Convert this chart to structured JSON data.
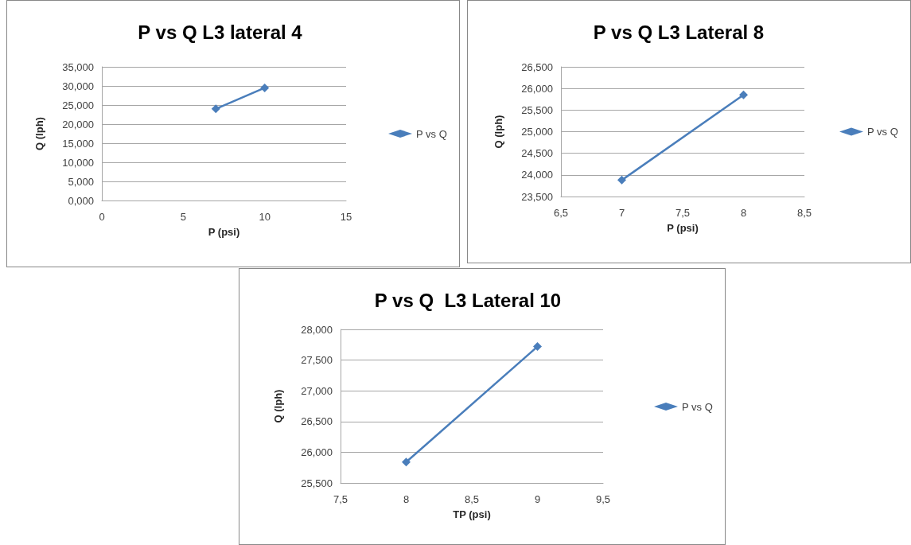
{
  "chart_data": [
    {
      "type": "line",
      "title": "P vs Q L3 lateral 4",
      "xlabel": "P (psi)",
      "ylabel": "Q (lph)",
      "x": [
        7,
        10
      ],
      "series": [
        {
          "name": "P vs Q",
          "color": "#4a7ebb",
          "values": [
            24.0,
            29.5
          ]
        }
      ],
      "xlim": [
        0,
        15
      ],
      "xticks": [
        0,
        5,
        10,
        15
      ],
      "ylim": [
        0,
        35
      ],
      "yticks": [
        {
          "value": 0,
          "label": "0,000"
        },
        {
          "value": 5,
          "label": "5,000"
        },
        {
          "value": 10,
          "label": "10,000"
        },
        {
          "value": 15,
          "label": "15,000"
        },
        {
          "value": 20,
          "label": "20,000"
        },
        {
          "value": 25,
          "label": "25,000"
        },
        {
          "value": 30,
          "label": "30,000"
        },
        {
          "value": 35,
          "label": "35,000"
        }
      ],
      "grid": "y",
      "legend": "right",
      "marker": "diamond",
      "line_style": "solid"
    },
    {
      "type": "line",
      "title": "P vs Q L3 Lateral 8",
      "xlabel": "P (psi)",
      "ylabel": "Q (lph)",
      "x": [
        7,
        8
      ],
      "series": [
        {
          "name": "P vs Q",
          "color": "#4a7ebb",
          "values": [
            23.88,
            25.85
          ]
        }
      ],
      "xlim": [
        6.5,
        8.5
      ],
      "xticks": [
        {
          "value": 6.5,
          "label": "6,5"
        },
        7,
        {
          "value": 7.5,
          "label": "7,5"
        },
        8,
        {
          "value": 8.5,
          "label": "8,5"
        }
      ],
      "ylim": [
        23.5,
        26.5
      ],
      "yticks": [
        {
          "value": 23.5,
          "label": "23,500"
        },
        {
          "value": 24,
          "label": "24,000"
        },
        {
          "value": 24.5,
          "label": "24,500"
        },
        {
          "value": 25,
          "label": "25,000"
        },
        {
          "value": 25.5,
          "label": "25,500"
        },
        {
          "value": 26,
          "label": "26,000"
        },
        {
          "value": 26.5,
          "label": "26,500"
        }
      ],
      "grid": "y",
      "legend": "right",
      "marker": "diamond",
      "line_style": "solid"
    },
    {
      "type": "line",
      "title": "P vs Q  L3 Lateral 10",
      "xlabel": "TP (psi)",
      "ylabel": "Q (lph)",
      "x": [
        8,
        9
      ],
      "series": [
        {
          "name": "P vs Q",
          "color": "#4a7ebb",
          "values": [
            25.84,
            27.72
          ]
        }
      ],
      "xlim": [
        7.5,
        9.5
      ],
      "xticks": [
        {
          "value": 7.5,
          "label": "7,5"
        },
        8,
        {
          "value": 8.5,
          "label": "8,5"
        },
        9,
        {
          "value": 9.5,
          "label": "9,5"
        }
      ],
      "ylim": [
        25.5,
        28
      ],
      "yticks": [
        {
          "value": 25.5,
          "label": "25,500"
        },
        {
          "value": 26,
          "label": "26,000"
        },
        {
          "value": 26.5,
          "label": "26,500"
        },
        {
          "value": 27,
          "label": "27,000"
        },
        {
          "value": 27.5,
          "label": "27,500"
        },
        {
          "value": 28,
          "label": "28,000"
        }
      ],
      "grid": "y",
      "legend": "right",
      "marker": "diamond",
      "line_style": "solid"
    }
  ]
}
